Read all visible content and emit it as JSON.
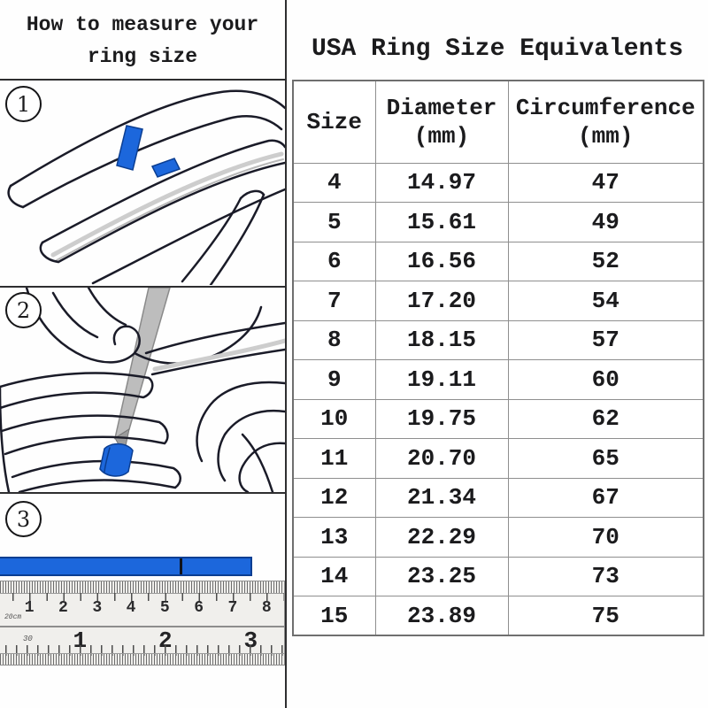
{
  "left_panel": {
    "title_line1": "How to measure your",
    "title_line2": "ring size",
    "step_numbers": [
      "1",
      "2",
      "3"
    ]
  },
  "ruler": {
    "cm_label": "20cm",
    "cm_numbers": [
      "1",
      "2",
      "3",
      "4",
      "5",
      "6",
      "7",
      "8"
    ],
    "inch_label": "30",
    "inch_numbers": [
      "1",
      "2",
      "3"
    ]
  },
  "right_panel": {
    "title": "USA Ring Size Equivalents",
    "table": {
      "header": {
        "size": "Size",
        "diameter": "Diameter",
        "diameter_unit": "(mm)",
        "circumference": "Circumference",
        "circumference_unit": "(mm)"
      },
      "rows": [
        [
          "4",
          "14.97",
          "47"
        ],
        [
          "5",
          "15.61",
          "49"
        ],
        [
          "6",
          "16.56",
          "52"
        ],
        [
          "7",
          "17.20",
          "54"
        ],
        [
          "8",
          "18.15",
          "57"
        ],
        [
          "9",
          "19.11",
          "60"
        ],
        [
          "10",
          "19.75",
          "62"
        ],
        [
          "11",
          "20.70",
          "65"
        ],
        [
          "12",
          "21.34",
          "67"
        ],
        [
          "13",
          "22.29",
          "70"
        ],
        [
          "14",
          "23.25",
          "73"
        ],
        [
          "15",
          "23.89",
          "75"
        ]
      ]
    }
  },
  "colors": {
    "accent_blue": "#1c67dc",
    "accent_blue_dark": "#0b3e92",
    "line_ink": "#1a1b28",
    "table_border": "#8f8f8f"
  }
}
